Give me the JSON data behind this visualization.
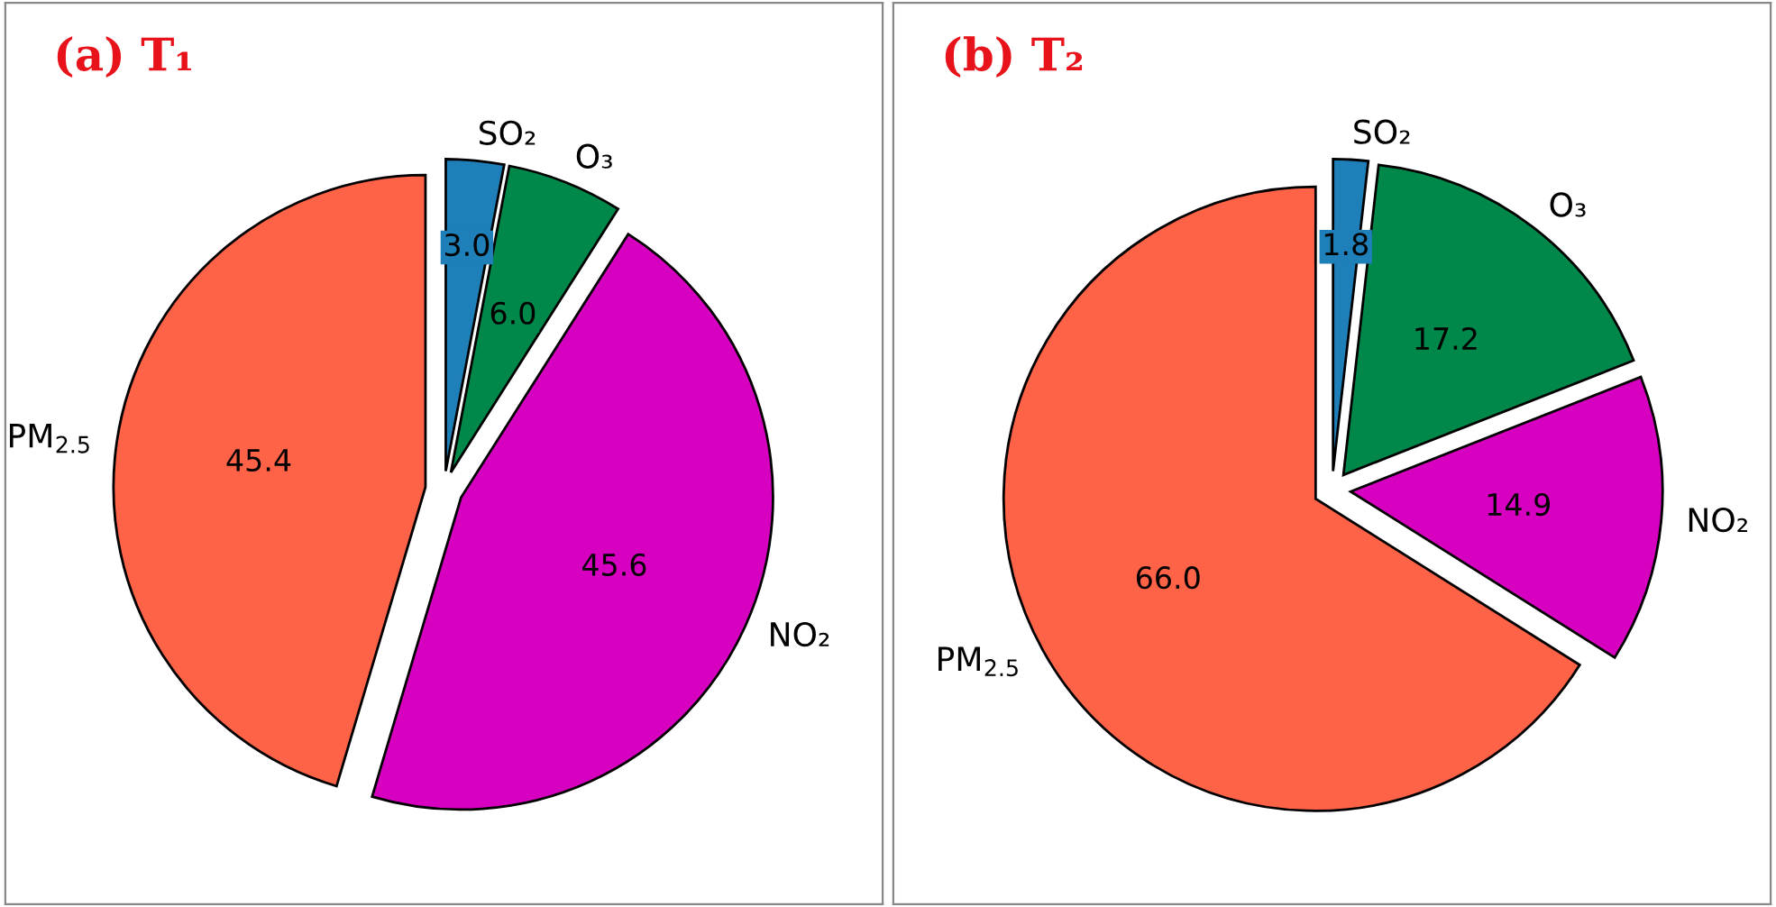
{
  "chart_data": [
    {
      "type": "pie",
      "title": "(a) T₁",
      "categories": [
        "SO₂",
        "O₃",
        "NO₂",
        "PM$_{2.5}$"
      ],
      "values": [
        3.0,
        6.0,
        45.6,
        45.4
      ],
      "colors": [
        "#1f7fb8",
        "#00874a",
        "#d800c0",
        "#ff6347"
      ],
      "value_labels": [
        "3.0",
        "6.0",
        "45.6",
        "45.4"
      ]
    },
    {
      "type": "pie",
      "title": "(b) T₂",
      "categories": [
        "SO₂",
        "O₃",
        "NO₂",
        "PM$_{2.5}$"
      ],
      "values": [
        1.8,
        17.2,
        14.9,
        66.0
      ],
      "colors": [
        "#1f7fb8",
        "#00874a",
        "#d800c0",
        "#ff6347"
      ],
      "value_labels": [
        "1.8",
        "17.2",
        "14.9",
        "66.0"
      ]
    }
  ]
}
